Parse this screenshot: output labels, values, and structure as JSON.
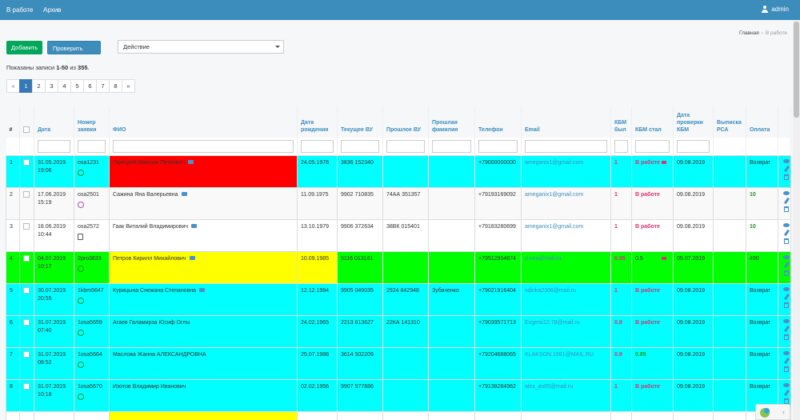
{
  "nav": {
    "items": [
      "В работе",
      "Архив"
    ],
    "user": "admin"
  },
  "breadcrumb": {
    "home": "Главная",
    "separator": "›",
    "current": "В работе"
  },
  "toolbar": {
    "add_label": "Добавить",
    "check_kbm_label": "Проверить КБМ",
    "action_select": "Действие"
  },
  "summary": {
    "prefix": "Показаны записи ",
    "range": "1-50",
    "middle": " из ",
    "total": "355",
    "suffix": "."
  },
  "pagination": [
    "«",
    "1",
    "2",
    "3",
    "4",
    "5",
    "6",
    "7",
    "8",
    "»"
  ],
  "pagination_active": "1",
  "colors": {
    "cyan": "#00ffff",
    "red": "#ff0000",
    "yellow": "#ffff00",
    "green": "#00ff00",
    "white": "#ffffff"
  },
  "columns": [
    "#",
    "",
    "Дата",
    "Номер заявки",
    "ФИО",
    "Дата рождения",
    "Текущее ВУ",
    "Прошлое ВУ",
    "Прошлая фамилия",
    "Телефон",
    "Email",
    "КБМ был",
    "КБМ стал",
    "Дата проверки КБМ",
    "Выписка РСА",
    "Оплата",
    ""
  ],
  "rows": [
    {
      "num": "1",
      "date": "31.05.2019",
      "time": "19:06",
      "app": "osa1231",
      "app_icon": "green-circle-icon",
      "fio": "Горецкий Максим Петрович",
      "fio_msg": true,
      "dob": "24.05.1978",
      "vu": "3836 152340",
      "prev_vu": "",
      "prev_name": "",
      "phone": "+79000000000",
      "email": "ameganix1@gmail.com",
      "kbm_was": "1",
      "kbm_now": "В работе",
      "kbm_now_type": "status",
      "kbm_env": true,
      "kbm_date": "09.08.2019",
      "rsa": "",
      "pay": "Возврат",
      "pay_type": "normal",
      "bg": {
        "row": "#00ffff",
        "fio": "#ff0000",
        "dob": "#00ffff"
      }
    },
    {
      "num": "2",
      "date": "17.06.2019",
      "time": "15:19",
      "app": "osa2501",
      "app_icon": "purple-circle-icon",
      "fio": "Сажина Яна Валерьевна",
      "fio_msg": true,
      "dob": "11.09.1975",
      "vu": "9902 710835",
      "prev_vu": "74АА 351357",
      "prev_name": "",
      "phone": "+79193169092",
      "email": "ameganix1@gmail.com",
      "kbm_was": "1",
      "kbm_now": "В работе",
      "kbm_now_type": "status",
      "kbm_env": false,
      "kbm_date": "09.08.2019",
      "rsa": "",
      "pay": "10",
      "pay_type": "green",
      "bg": {
        "row": "#f9f9f9",
        "fio": "#f9f9f9",
        "dob": "#f9f9f9"
      }
    },
    {
      "num": "3",
      "date": "18.06.2019",
      "time": "10:44",
      "app": "osa2572",
      "app_icon": "document-icon",
      "fio": "Гаак Виталий Владимирович",
      "fio_msg": true,
      "dob": "13.10.1979",
      "vu": "9906 372634",
      "prev_vu": "38ВК 015401",
      "prev_name": "",
      "phone": "+79183280699",
      "email": "ameganix1@gmail.com",
      "kbm_was": "1",
      "kbm_now": "В работе",
      "kbm_now_type": "status",
      "kbm_env": false,
      "kbm_date": "09.08.2019",
      "rsa": "",
      "pay": "10",
      "pay_type": "green",
      "bg": {
        "row": "#ffffff",
        "fio": "#ffffff",
        "dob": "#ffffff"
      }
    },
    {
      "num": "4",
      "date": "04.07.2019",
      "time": "10:17",
      "app": "2pro3833",
      "app_icon": "green-circle-icon",
      "fio": "Петров Кирилл Михайлович",
      "fio_msg": true,
      "dob": "10.09.1985",
      "vu": "5116 013161",
      "prev_vu": "",
      "prev_name": "",
      "phone": "+79512954874",
      "email": "p.kira@mail.ru",
      "kbm_was": "0.95",
      "kbm_now": "0.5",
      "kbm_now_type": "plain",
      "kbm_env": true,
      "kbm_date": "05.07.2019",
      "rsa": "",
      "pay": "490",
      "pay_type": "normal",
      "bg": {
        "row": "#00ff00",
        "fio": "#ffff00",
        "dob": "#ffff00"
      }
    },
    {
      "num": "5",
      "date": "30.07.2019",
      "time": "20:55",
      "app": "1kbm5647",
      "app_icon": "green-circle-icon",
      "fio": "Курицына Снежана Степановна",
      "fio_msg": true,
      "dob": "12.12.1984",
      "vu": "9905 049035",
      "prev_vu": "2924 842948",
      "prev_name": "Зубаченко",
      "phone": "+79021916404",
      "email": "sdinka2306@mail.ru",
      "kbm_was": "1",
      "kbm_now": "В работе",
      "kbm_now_type": "status",
      "kbm_env": false,
      "kbm_date": "09.08.2019",
      "rsa": "",
      "pay": "Возврат",
      "pay_type": "normal",
      "bg": {
        "row": "#00ffff",
        "fio": "#00ffff",
        "dob": "#00ffff"
      }
    },
    {
      "num": "6",
      "date": "31.07.2019",
      "time": "07:40",
      "app": "1osa5659",
      "app_icon": "green-circle-icon",
      "fio": "Агаев Галамирза Юсиф Оглы",
      "fio_msg": false,
      "dob": "24.02.1965",
      "vu": "2213 613627",
      "prev_vu": "22КА 141310",
      "prev_name": "",
      "phone": "+79039571713",
      "email": "Evgenii12.78@mail.ru",
      "kbm_was": "0.8",
      "kbm_now": "В работе",
      "kbm_now_type": "status",
      "kbm_env": false,
      "kbm_date": "09.08.2019",
      "rsa": "",
      "pay": "Возврат",
      "pay_type": "normal",
      "bg": {
        "row": "#00ffff",
        "fio": "#00ffff",
        "dob": "#00ffff"
      }
    },
    {
      "num": "7",
      "date": "31.07.2019",
      "time": "08:52",
      "app": "1osa5664",
      "app_icon": "green-circle-icon",
      "fio": "Маслова Жанна АЛЕКСАНДРОВНА",
      "fio_msg": false,
      "dob": "25.07.1988",
      "vu": "3614 502209",
      "prev_vu": "",
      "prev_name": "",
      "phone": "+79204688065",
      "email": "KLAKSON.1981@MAIL.RU",
      "kbm_was": "0.9",
      "kbm_now": "0.85",
      "kbm_now_type": "green",
      "kbm_env": false,
      "kbm_date": "09.08.2019",
      "rsa": "",
      "pay": "Возврат",
      "pay_type": "normal",
      "bg": {
        "row": "#00ffff",
        "fio": "#00ffff",
        "dob": "#00ffff"
      }
    },
    {
      "num": "8",
      "date": "31.07.2019",
      "time": "10:18",
      "app": "1osa5670",
      "app_icon": "green-circle-icon",
      "fio": "Изотов Владимир Иванович",
      "fio_msg": false,
      "dob": "02.02.1956",
      "vu": "9907 577886",
      "prev_vu": "",
      "prev_name": "",
      "phone": "+79138284962",
      "email": "alex_as65@mail.ru",
      "kbm_was": "1",
      "kbm_now": "В работе",
      "kbm_now_type": "status",
      "kbm_env": false,
      "kbm_date": "09.08.2019",
      "rsa": "",
      "pay": "Возврат",
      "pay_type": "normal",
      "bg": {
        "row": "#00ffff",
        "fio": "#00ffff",
        "dob": "#00ffff"
      }
    }
  ]
}
